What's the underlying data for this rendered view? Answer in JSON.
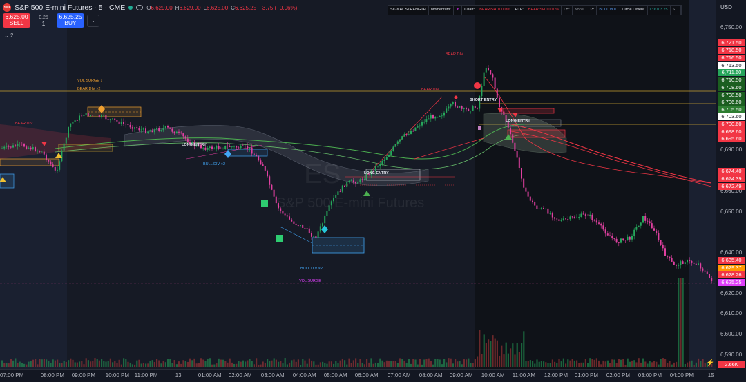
{
  "header": {
    "symbol_logo": "500",
    "title": "S&P 500 E-mini Futures · 5 · CME",
    "ohlc": {
      "o_label": "O",
      "o": "6,629.00",
      "h_label": "H",
      "h": "6,629.00",
      "l_label": "L",
      "l": "6,625.00",
      "c_label": "C",
      "c": "6,625.25",
      "change": "−3.75 (−0.06%)"
    }
  },
  "trade": {
    "sell_price": "6,625.00",
    "sell_label": "SELL",
    "spread": "0.25",
    "quantity": "1",
    "buy_price": "6,625.25",
    "buy_label": "BUY"
  },
  "indicators_count": "2",
  "signal_table": {
    "signal_strength": "SIGNAL STRENGTH",
    "momentum_label": "Momentum:",
    "momentum_value": "▼",
    "chart_label": "Chart:",
    "chart_value": "BEARISH 100.0%",
    "htf_label": "HTF:",
    "htf_value": "BEARISH 100.0%",
    "d5_label": "D5:",
    "d5_value": "None",
    "d3_label": "D3:",
    "d3_value": "BULL VOL",
    "circle_label": "Circle Levels:",
    "circle_value": "L: 6703.25",
    "extra": "S..."
  },
  "price_axis": {
    "currency": "USD",
    "ticks": [
      "6,750.00",
      "6,690.00",
      "6,670.00",
      "6,660.00",
      "6,650.00",
      "6,640.00",
      "6,620.00",
      "6,610.00",
      "6,600.00",
      "6,590.00"
    ],
    "tags": [
      {
        "text": "6,721.50",
        "color": "#f23645"
      },
      {
        "text": "6,718.50",
        "color": "#f23645"
      },
      {
        "text": "6,716.50",
        "color": "#f23645"
      },
      {
        "text": "6,713.50",
        "color": "#ffffff"
      },
      {
        "text": "6,711.60",
        "color": "#26a65b"
      },
      {
        "text": "6,710.50",
        "color": "#1b5e20"
      },
      {
        "text": "6,708.60",
        "color": "#1b5e20"
      },
      {
        "text": "6,708.50",
        "color": "#1b5e20"
      },
      {
        "text": "6,706.60",
        "color": "#1b5e20"
      },
      {
        "text": "6,705.50",
        "color": "#2e7d32"
      },
      {
        "text": "6,703.60",
        "color": "#ffffff"
      },
      {
        "text": "6,700.60",
        "color": "#f23645"
      },
      {
        "text": "6,698.60",
        "color": "#f23645"
      },
      {
        "text": "6,695.60",
        "color": "#f23645"
      },
      {
        "text": "6,674.40",
        "color": "#f23645"
      },
      {
        "text": "6,674.39",
        "color": "#f23645"
      },
      {
        "text": "6,672.49",
        "color": "#f23645"
      },
      {
        "text": "6,635.40",
        "color": "#f23645"
      },
      {
        "text": "6,629.37",
        "color": "#ff9800"
      },
      {
        "text": "6,628.26",
        "color": "#f23645"
      },
      {
        "text": "6,625.25",
        "color": "#e040fb"
      },
      {
        "text": "2.66K",
        "color": "#f23645"
      }
    ]
  },
  "time_axis": {
    "labels": [
      "07:00 PM",
      "08:00 PM",
      "09:00 PM",
      "10:00 PM",
      "11:00 PM",
      "13",
      "01:00 AM",
      "02:00 AM",
      "03:00 AM",
      "04:00 AM",
      "05:00 AM",
      "06:00 AM",
      "07:00 AM",
      "08:00 AM",
      "09:00 AM",
      "10:00 AM",
      "11:00 AM",
      "12:00 PM",
      "01:00 PM",
      "02:00 PM",
      "03:00 PM",
      "04:00 PM",
      "15"
    ]
  },
  "annotations": {
    "bear_div_1": "BEAR DIV",
    "vol_surge_1": "VOL SURGE ↓",
    "bear_div_2": "BEAR DIV ×2",
    "long_entry_1": "LONG ENTRY",
    "bull_div_1": "BULL DIV ×2",
    "bull_div_2": "BULL DIV ×2",
    "vol_surge_2": "VOL SURGE ↑",
    "long_entry_2": "LONG ENTRY",
    "bear_div_3": "BEAR DIV",
    "bear_div_4": "BEAR DIV",
    "short_entry": "SHORT ENTRY",
    "long_entry_3": "LONG ENTRY"
  },
  "watermark": {
    "symbol": "ES",
    "name": "S&P 500 E-mini Futures"
  },
  "colors": {
    "bull_candle": "#26a65b",
    "bear_candle": "#e040a0",
    "background": "#161a25"
  }
}
